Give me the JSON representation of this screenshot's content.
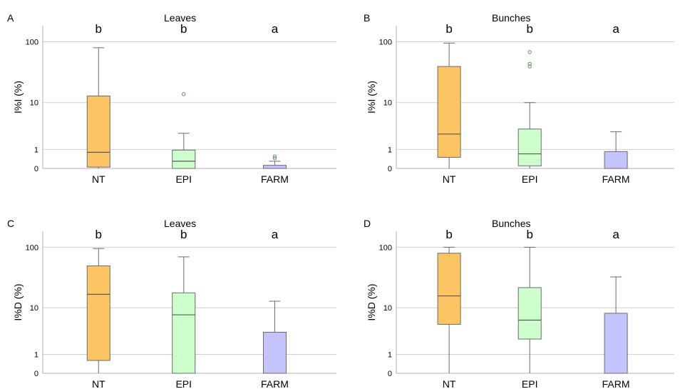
{
  "colors": {
    "NT": "#fcc463",
    "EPI": "#ccffcc",
    "FARM": "#c4c4fc",
    "outlier": "#5f8f5f"
  },
  "chart_data": [
    {
      "type": "box",
      "panel": "A",
      "title": "Leaves",
      "ylabel": "I%I (%)",
      "scale": "log1p",
      "yticks": [
        0,
        1,
        10,
        100
      ],
      "ylim": [
        0,
        180
      ],
      "categories": [
        "NT",
        "EPI",
        "FARM"
      ],
      "boxes": [
        {
          "category": "NT",
          "min": 0,
          "q1": 0.05,
          "median": 0.8,
          "q3": 13,
          "max": 80,
          "outliers": [],
          "letter": "b"
        },
        {
          "category": "EPI",
          "min": 0,
          "q1": 0,
          "median": 0.3,
          "q3": 0.95,
          "max": 2.6,
          "outliers": [
            14
          ],
          "letter": "b"
        },
        {
          "category": "FARM",
          "min": 0,
          "q1": 0,
          "median": 0,
          "q3": 0.12,
          "max": 0.3,
          "outliers": [
            0.45,
            0.55
          ],
          "letter": "a"
        }
      ]
    },
    {
      "type": "box",
      "panel": "B",
      "title": "Bunches",
      "ylabel": "I%I (%)",
      "scale": "log1p",
      "yticks": [
        0,
        1,
        10,
        100
      ],
      "ylim": [
        0,
        180
      ],
      "categories": [
        "NT",
        "EPI",
        "FARM"
      ],
      "boxes": [
        {
          "category": "NT",
          "min": 0,
          "q1": 0.5,
          "median": 2.5,
          "q3": 40,
          "max": 95,
          "outliers": [],
          "letter": "b"
        },
        {
          "category": "EPI",
          "min": 0,
          "q1": 0.1,
          "median": 0.7,
          "q3": 3.2,
          "max": 10,
          "outliers": [
            40,
            44,
            68
          ],
          "letter": "b"
        },
        {
          "category": "FARM",
          "min": 0,
          "q1": 0,
          "median": 0,
          "q3": 0.85,
          "max": 2.8,
          "outliers": [],
          "letter": "a"
        }
      ]
    },
    {
      "type": "box",
      "panel": "C",
      "title": "Leaves",
      "ylabel": "I%D (%)",
      "scale": "log1p",
      "yticks": [
        0,
        1,
        10,
        100
      ],
      "ylim": [
        0,
        180
      ],
      "categories": [
        "NT",
        "EPI",
        "FARM"
      ],
      "boxes": [
        {
          "category": "NT",
          "min": 0,
          "q1": 0.6,
          "median": 17,
          "q3": 50,
          "max": 95,
          "outliers": [],
          "letter": "b"
        },
        {
          "category": "EPI",
          "min": 0,
          "q1": 0,
          "median": 7.5,
          "q3": 18,
          "max": 70,
          "outliers": [],
          "letter": "b"
        },
        {
          "category": "FARM",
          "min": 0,
          "q1": 0,
          "median": 0,
          "q3": 3.5,
          "max": 13,
          "outliers": [],
          "letter": "a"
        }
      ]
    },
    {
      "type": "box",
      "panel": "D",
      "title": "Bunches",
      "ylabel": "I%D (%)",
      "scale": "log1p",
      "yticks": [
        0,
        1,
        10,
        100
      ],
      "ylim": [
        0,
        180
      ],
      "categories": [
        "NT",
        "EPI",
        "FARM"
      ],
      "boxes": [
        {
          "category": "NT",
          "min": 0,
          "q1": 5,
          "median": 16,
          "q3": 80,
          "max": 100,
          "outliers": [],
          "letter": "b"
        },
        {
          "category": "EPI",
          "min": 0,
          "q1": 2.5,
          "median": 6,
          "q3": 22,
          "max": 100,
          "outliers": [],
          "letter": "b"
        },
        {
          "category": "FARM",
          "min": 0,
          "q1": 0,
          "median": 0,
          "q3": 8,
          "max": 33,
          "outliers": [],
          "letter": "a"
        }
      ]
    }
  ]
}
